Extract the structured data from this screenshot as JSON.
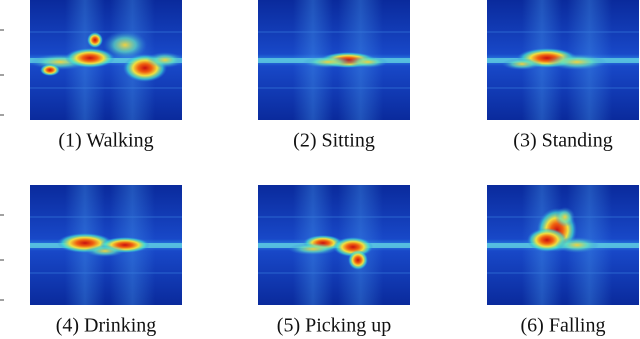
{
  "panels": [
    {
      "caption": "(1) Walking"
    },
    {
      "caption": "(2) Sitting"
    },
    {
      "caption": "(3) Standing"
    },
    {
      "caption": "(4) Drinking"
    },
    {
      "caption": "(5) Picking up"
    },
    {
      "caption": "(6) Falling"
    }
  ]
}
